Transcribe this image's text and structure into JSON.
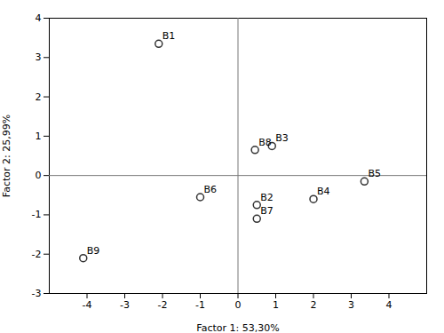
{
  "chart_data": {
    "type": "scatter",
    "x": [
      -2.1,
      0.5,
      0.9,
      2.0,
      3.35,
      -1.0,
      0.5,
      0.45,
      -4.1
    ],
    "y": [
      3.35,
      -0.75,
      0.75,
      -0.6,
      -0.15,
      -0.55,
      -1.1,
      0.65,
      -2.1
    ],
    "labels": [
      "B1",
      "B2",
      "B3",
      "B4",
      "B5",
      "B6",
      "B7",
      "B8",
      "B9"
    ],
    "xlabel": "Factor 1: 53,30%",
    "ylabel": "Factor 2: 25,99%",
    "xlim": [
      -5,
      5
    ],
    "ylim": [
      -3,
      4
    ],
    "xticks": [
      -4,
      -3,
      -2,
      -1,
      0,
      1,
      2,
      3,
      4
    ],
    "yticks": [
      -3,
      -2,
      -1,
      0,
      1,
      2,
      3,
      4
    ],
    "hlines": [
      0
    ],
    "vlines": [
      0
    ],
    "color": "#333333",
    "marker": "circle",
    "grid": false
  }
}
